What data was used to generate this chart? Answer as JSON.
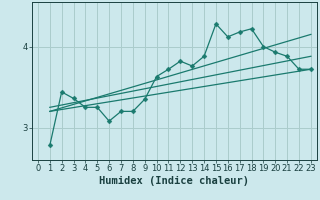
{
  "title": "",
  "xlabel": "Humidex (Indice chaleur)",
  "ylabel": "",
  "bg_color": "#cce8ec",
  "grid_color": "#aacccc",
  "line_color": "#1a7a6e",
  "xlim": [
    -0.5,
    23.5
  ],
  "ylim": [
    2.6,
    4.55
  ],
  "yticks": [
    3,
    4
  ],
  "xticks": [
    0,
    1,
    2,
    3,
    4,
    5,
    6,
    7,
    8,
    9,
    10,
    11,
    12,
    13,
    14,
    15,
    16,
    17,
    18,
    19,
    20,
    21,
    22,
    23
  ],
  "line1_x": [
    1,
    2,
    3,
    4,
    5,
    6,
    7,
    8,
    9,
    10,
    11,
    12,
    13,
    14,
    15,
    16,
    17,
    18,
    19,
    20,
    21,
    22,
    23
  ],
  "line1_y": [
    2.78,
    3.44,
    3.36,
    3.25,
    3.25,
    3.08,
    3.2,
    3.2,
    3.35,
    3.63,
    3.72,
    3.82,
    3.76,
    3.88,
    4.28,
    4.12,
    4.18,
    4.22,
    4.0,
    3.93,
    3.88,
    3.72,
    3.72
  ],
  "line2_x": [
    1,
    23
  ],
  "line2_y": [
    3.2,
    3.72
  ],
  "line3_x": [
    1,
    23
  ],
  "line3_y": [
    3.25,
    3.88
  ],
  "line4_x": [
    1,
    23
  ],
  "line4_y": [
    3.2,
    4.15
  ],
  "font_color": "#1a4040",
  "tick_fontsize": 6,
  "label_fontsize": 7.5
}
